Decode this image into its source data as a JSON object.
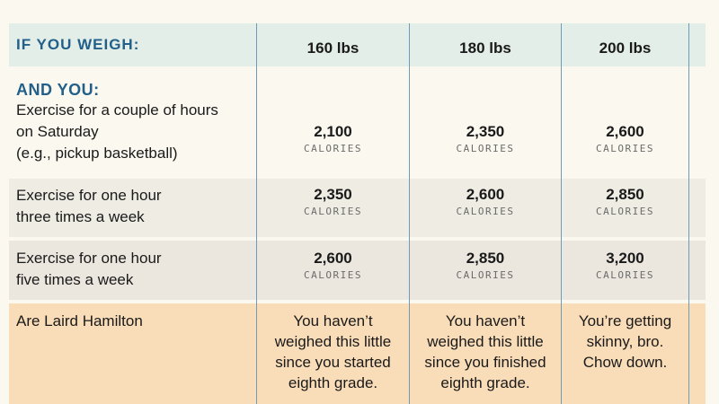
{
  "header": {
    "label": "IF YOU WEIGH:",
    "columns": [
      "160 lbs",
      "180 lbs",
      "200 lbs"
    ]
  },
  "subheader": "AND YOU:",
  "unit": "CALORIES",
  "rows": [
    {
      "activity": "Exercise for a couple of hours\non Saturday\n(e.g., pickup basketball)",
      "values": [
        "2,100",
        "2,350",
        "2,600"
      ]
    },
    {
      "activity": "Exercise for one hour\nthree times a week",
      "values": [
        "2,350",
        "2,600",
        "2,850"
      ]
    },
    {
      "activity": "Exercise for one hour\nfive times a week",
      "values": [
        "2,600",
        "2,850",
        "3,200"
      ]
    },
    {
      "activity": "Are Laird Hamilton",
      "values": [
        "You haven’t\nweighed this little\nsince you started\neighth grade.",
        "You haven’t\nweighed this little\nsince you finished\neighth grade.",
        "You’re getting\nskinny, bro.\nChow down."
      ]
    }
  ],
  "colors": {
    "header_band": "#e3eee9",
    "accent_blue": "#236089",
    "rule_blue": "#6f9bb6",
    "last_row": "#f9dcb8"
  }
}
